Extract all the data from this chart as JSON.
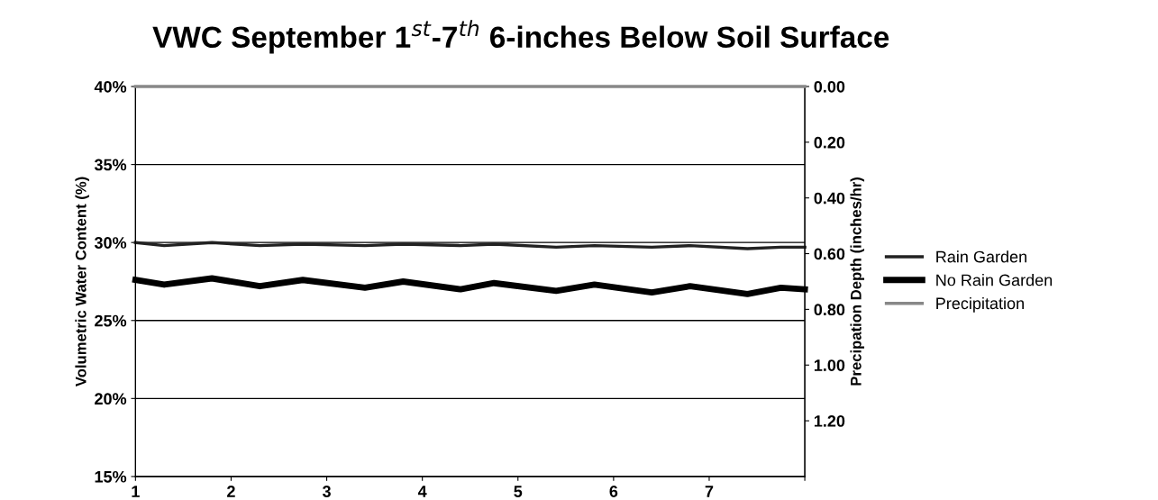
{
  "chart_data": {
    "type": "line",
    "title": "VWC September 1$^{st}$-7$^{th}$ 6-inches Below Soil Surface",
    "ylabel": "Volumetric Water Content (%)",
    "y2label": "Precipation Depth (inches/hr)",
    "x": [
      1,
      1.3,
      1.8,
      2.3,
      2.75,
      3.4,
      3.8,
      4.4,
      4.75,
      5.4,
      5.8,
      6.4,
      6.8,
      7.4,
      7.75,
      8
    ],
    "xlim": [
      1,
      8
    ],
    "xticks": [
      1,
      2,
      3,
      4,
      5,
      6,
      7,
      {
        "value": 8,
        "label": null
      }
    ],
    "ylim": [
      15,
      40
    ],
    "yticks": [
      {
        "value": 15,
        "label": "15%"
      },
      {
        "value": 20,
        "label": "20%"
      },
      {
        "value": 25,
        "label": "25%"
      },
      {
        "value": 30,
        "label": "30%"
      },
      {
        "value": 35,
        "label": "35%"
      },
      {
        "value": 40,
        "label": "40%"
      }
    ],
    "y2lim": [
      1.4,
      0
    ],
    "y2ticks": [
      {
        "value": 0,
        "label": "0.00"
      },
      {
        "value": 0.2,
        "label": "0.20"
      },
      {
        "value": 0.4,
        "label": "0.40"
      },
      {
        "value": 0.6,
        "label": "0.60"
      },
      {
        "value": 0.8,
        "label": "0.80"
      },
      {
        "value": 1.0,
        "label": "1.00"
      },
      {
        "value": 1.2,
        "label": "1.20"
      }
    ],
    "series": [
      {
        "name": "Rain Garden",
        "color": "#222222",
        "values": [
          30.0,
          29.8,
          30.0,
          29.8,
          29.9,
          29.8,
          29.9,
          29.8,
          29.9,
          29.7,
          29.8,
          29.7,
          29.8,
          29.6,
          29.7,
          29.7
        ]
      },
      {
        "name": "No Rain Garden",
        "color": "#000000",
        "values": [
          27.6,
          27.3,
          27.7,
          27.2,
          27.6,
          27.1,
          27.5,
          27.0,
          27.4,
          26.9,
          27.3,
          26.8,
          27.2,
          26.7,
          27.1,
          27.0
        ]
      },
      {
        "name": "Precipitation",
        "color": "#888888",
        "axis": "y2",
        "values": [
          0,
          0,
          0,
          0,
          0,
          0,
          0,
          0,
          0,
          0,
          0,
          0,
          0,
          0,
          0,
          0
        ]
      }
    ],
    "grid": "y",
    "legend": "right"
  }
}
